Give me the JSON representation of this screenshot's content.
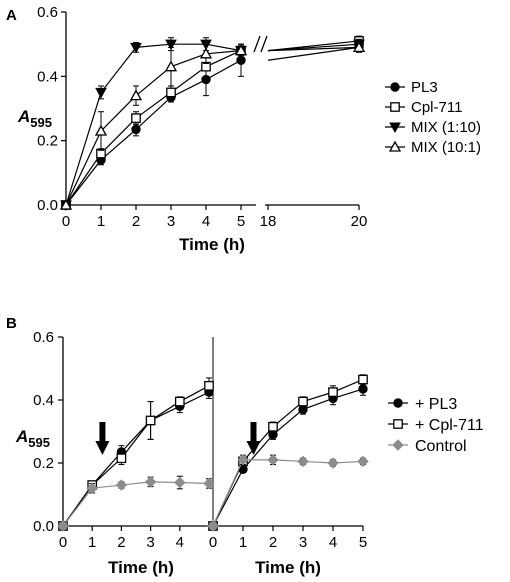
{
  "panels": {
    "A": {
      "letter": "A"
    },
    "B": {
      "letter": "B"
    }
  },
  "chart_data": [
    {
      "panel": "A",
      "type": "line",
      "xlabel": "Time (h)",
      "ylabel_main": "A",
      "ylabel_sub": "595",
      "ylim": [
        0,
        0.6
      ],
      "yticks": [
        "0.0",
        "0.2",
        "0.4",
        "0.6"
      ],
      "xticks": [
        "0",
        "1",
        "2",
        "3",
        "4",
        "5",
        "18",
        "20"
      ],
      "axis_break_between": [
        "5",
        "18"
      ],
      "legend_position": "right",
      "series": [
        {
          "name": "PL3",
          "marker": "filled-circle",
          "color": "#000000",
          "x": [
            0,
            1,
            2,
            3,
            4,
            5,
            18,
            20
          ],
          "y": [
            0.0,
            0.14,
            0.235,
            0.335,
            0.39,
            0.45,
            null,
            0.49
          ],
          "err": [
            0,
            0.015,
            0.02,
            0.015,
            0.05,
            0.05,
            0,
            0.015
          ]
        },
        {
          "name": "Cpl-711",
          "marker": "open-square",
          "color": "#000000",
          "x": [
            0,
            1,
            2,
            3,
            4,
            5,
            18,
            20
          ],
          "y": [
            0.0,
            0.16,
            0.27,
            0.35,
            0.43,
            0.48,
            null,
            0.51
          ],
          "err": [
            0,
            0.015,
            0.02,
            0.02,
            0.04,
            0.02,
            0,
            0.015
          ]
        },
        {
          "name": "MIX (1:10)",
          "marker": "filled-triangle-down",
          "color": "#000000",
          "x": [
            0,
            1,
            2,
            3,
            4,
            5,
            18,
            20
          ],
          "y": [
            0.0,
            0.35,
            0.49,
            0.5,
            0.5,
            0.48,
            null,
            0.5
          ],
          "err": [
            0,
            0.02,
            0.015,
            0.02,
            0.02,
            0.015,
            0,
            0.015
          ]
        },
        {
          "name": "MIX (10:1)",
          "marker": "open-triangle-up",
          "color": "#000000",
          "x": [
            0,
            1,
            2,
            3,
            4,
            5,
            18,
            20
          ],
          "y": [
            0.0,
            0.23,
            0.34,
            0.43,
            0.47,
            0.48,
            null,
            0.49
          ],
          "err": [
            0,
            0.06,
            0.03,
            0.06,
            0.03,
            0.02,
            0,
            0.015
          ]
        }
      ]
    },
    {
      "panel": "B",
      "type": "line",
      "ylabel_main": "A",
      "ylabel_sub": "595",
      "ylim": [
        0,
        0.6
      ],
      "yticks": [
        "0.0",
        "0.2",
        "0.4",
        "0.6"
      ],
      "legend_position": "right",
      "subpanels": [
        {
          "xlabel": "Time (h)",
          "xlim": [
            0,
            5
          ],
          "xticks": [
            "0",
            "1",
            "2",
            "3",
            "4"
          ],
          "arrow_at_x": 1.35,
          "series": [
            {
              "name": "+ PL3",
              "marker": "filled-circle",
              "color": "#000000",
              "x": [
                0,
                1,
                2,
                3,
                4,
                5
              ],
              "y": [
                0.0,
                0.13,
                0.235,
                0.335,
                0.38,
                0.425
              ],
              "err": [
                0,
                0.01,
                0.02,
                0.06,
                0.02,
                0.02
              ]
            },
            {
              "name": "+ Cpl-711",
              "marker": "open-square",
              "color": "#000000",
              "x": [
                0,
                1,
                2,
                3,
                4,
                5
              ],
              "y": [
                0.0,
                0.13,
                0.215,
                0.335,
                0.395,
                0.445
              ],
              "err": [
                0,
                0.01,
                0.02,
                0.06,
                0.015,
                0.025
              ]
            },
            {
              "name": "Control",
              "marker": "filled-diamond",
              "color": "#8c8c8c",
              "x": [
                0,
                1,
                2,
                3,
                4,
                5
              ],
              "y": [
                0.0,
                0.12,
                0.13,
                0.14,
                0.138,
                0.135
              ],
              "err": [
                0,
                0.015,
                0.01,
                0.015,
                0.02,
                0.015
              ]
            }
          ]
        },
        {
          "xlabel": "Time (h)",
          "xlim": [
            0,
            5
          ],
          "xticks": [
            "0",
            "1",
            "2",
            "3",
            "4",
            "5"
          ],
          "arrow_at_x": 1.35,
          "series": [
            {
              "name": "+ PL3",
              "marker": "filled-circle",
              "color": "#000000",
              "x": [
                0,
                1,
                2,
                3,
                4,
                5
              ],
              "y": [
                0.0,
                0.18,
                0.29,
                0.37,
                0.405,
                0.435
              ],
              "err": [
                0,
                0.01,
                0.015,
                0.015,
                0.02,
                0.02
              ]
            },
            {
              "name": "+ Cpl-711",
              "marker": "open-square",
              "color": "#000000",
              "x": [
                0,
                1,
                2,
                3,
                4,
                5
              ],
              "y": [
                0.0,
                0.205,
                0.315,
                0.395,
                0.425,
                0.465
              ],
              "err": [
                0,
                0.01,
                0.015,
                0.015,
                0.02,
                0.015
              ]
            },
            {
              "name": "Control",
              "marker": "filled-diamond",
              "color": "#8c8c8c",
              "x": [
                0,
                1,
                2,
                3,
                4,
                5
              ],
              "y": [
                0.0,
                0.21,
                0.21,
                0.205,
                0.2,
                0.205
              ],
              "err": [
                0,
                0.015,
                0.015,
                0.01,
                0.01,
                0.01
              ]
            }
          ]
        }
      ]
    }
  ]
}
